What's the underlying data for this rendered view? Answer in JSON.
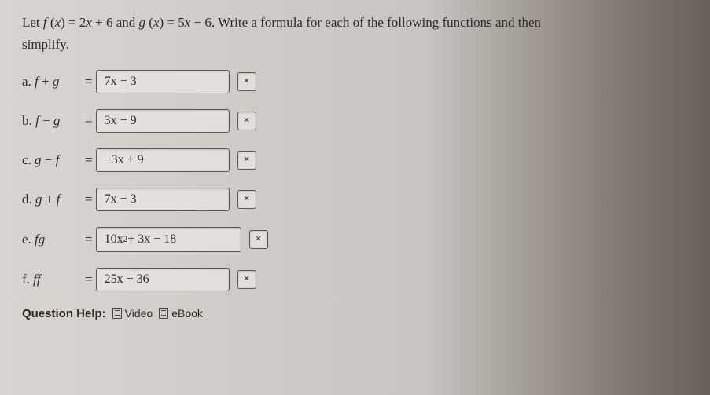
{
  "question": {
    "line1_html": "Let <span class='fn'>f</span> (<span class='fn'>x</span>) = 2<span class='fn'>x</span> + 6 and <span class='fn'>g</span> (<span class='fn'>x</span>) = 5<span class='fn'>x</span> − 6. Write a formula for each of the following functions and then",
    "line2": "simplify."
  },
  "items": [
    {
      "letter": "a.",
      "lhs_html": "<span class='fn'>f</span> + <span class='fn'>g</span>",
      "answer": "7x − 3",
      "status": "×"
    },
    {
      "letter": "b.",
      "lhs_html": "<span class='fn'>f</span> − <span class='fn'>g</span>",
      "answer": "3x − 9",
      "status": "×"
    },
    {
      "letter": "c.",
      "lhs_html": "<span class='fn'>g</span> − <span class='fn'>f</span>",
      "answer": "−3x + 9",
      "status": "×"
    },
    {
      "letter": "d.",
      "lhs_html": "<span class='fn'>g</span> + <span class='fn'>f</span>",
      "answer": "7x − 3",
      "status": "×"
    },
    {
      "letter": "e.",
      "lhs_html": "<span class='fn'>f</span><span class='fn'>g</span>",
      "answer_html": "10x<sup>2</sup> + 3x − 18",
      "status": "×",
      "wider": true
    },
    {
      "letter": "f.",
      "lhs_html": "<span class='fn'>f</span><span class='fn'>f</span>",
      "answer": "25x − 36",
      "status": "×"
    }
  ],
  "help": {
    "label": "Question Help:",
    "video": "Video",
    "ebook": "eBook"
  },
  "colors": {
    "text": "#2a2a2a",
    "box_border": "#555555",
    "box_bg": "rgba(240,238,235,0.55)"
  }
}
